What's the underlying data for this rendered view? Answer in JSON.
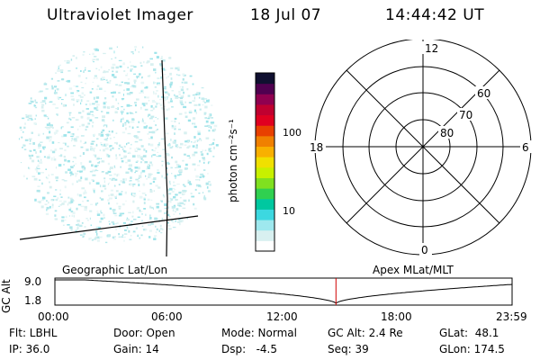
{
  "header": {
    "instrument": "Ultraviolet Imager",
    "date": "18 Jul 07",
    "time": "14:44:42 UT"
  },
  "colorbar": {
    "unit_label": "photon cm⁻²s⁻¹",
    "ticks": [
      "100",
      "10"
    ],
    "colors": [
      "#ffffff",
      "#d8f0f0",
      "#9ee8ee",
      "#3cd8e0",
      "#00c8a0",
      "#30d050",
      "#80e020",
      "#c8f000",
      "#f0e000",
      "#f8b000",
      "#f08000",
      "#e84000",
      "#e00020",
      "#c00030",
      "#900050",
      "#500050",
      "#101030"
    ]
  },
  "polar": {
    "lat_labels": [
      "60",
      "70",
      "80"
    ],
    "mlt_labels": {
      "top": "12",
      "bottom": "0",
      "left": "18",
      "right": "6"
    }
  },
  "timeline": {
    "y_title": "GC Alt",
    "y_ticks": [
      "9.0",
      "1.8"
    ],
    "left_title": "Geographic Lat/Lon",
    "right_title": "Apex MLat/MLT",
    "x_ticks": [
      "00:00",
      "06:00",
      "12:00",
      "18:00",
      "23:59"
    ],
    "current_marker": "14:44:42"
  },
  "info": {
    "filter": "Flt: LBHL",
    "ip": "IP: 36.0",
    "door": "Door: Open",
    "gain": "Gain: 14",
    "mode": "Mode: Normal",
    "dsp": "Dsp:   -4.5",
    "gc_alt": "GC Alt: 2.4 Re",
    "seq": "Seq: 39",
    "glat": "GLat:  48.1",
    "glon": "GLon: 174.5"
  }
}
